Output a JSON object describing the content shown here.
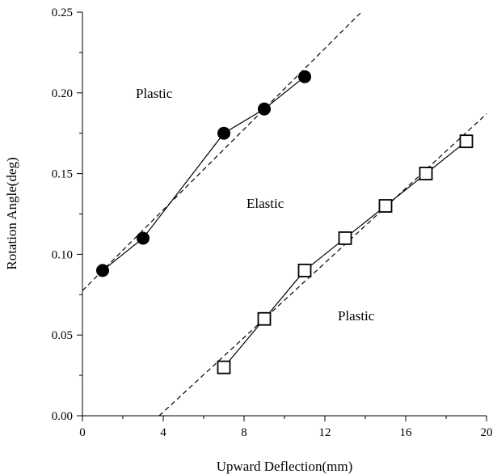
{
  "chart_data": {
    "type": "scatter",
    "title": "",
    "xlabel": "Upward Deflection(mm)",
    "ylabel": "Rotation Angle(deg)",
    "xlim": [
      0,
      20
    ],
    "ylim": [
      0,
      0.25
    ],
    "x_ticks": [
      "0",
      "4",
      "8",
      "12",
      "16",
      "20"
    ],
    "y_ticks": [
      "0.00",
      "0.05",
      "0.10",
      "0.15",
      "0.20",
      "0.25"
    ],
    "grid": false,
    "series": [
      {
        "marker": "filled-circle",
        "color": "#000000",
        "x": [
          1,
          3,
          7,
          9,
          11
        ],
        "y": [
          0.09,
          0.11,
          0.175,
          0.19,
          0.21
        ]
      },
      {
        "marker": "open-square",
        "color": "#000000",
        "x": [
          7,
          9,
          11,
          13,
          15,
          17,
          19
        ],
        "y": [
          0.03,
          0.06,
          0.09,
          0.11,
          0.13,
          0.15,
          0.17
        ]
      }
    ],
    "fit_lines": [
      {
        "style": "dashed",
        "x": [
          0,
          13.8
        ],
        "y": [
          0.0775,
          0.25
        ]
      },
      {
        "style": "dashed",
        "x": [
          3.8,
          20
        ],
        "y": [
          0,
          0.187
        ]
      }
    ],
    "annotations": [
      "Plastic",
      "Elastic",
      "Plastic"
    ]
  }
}
